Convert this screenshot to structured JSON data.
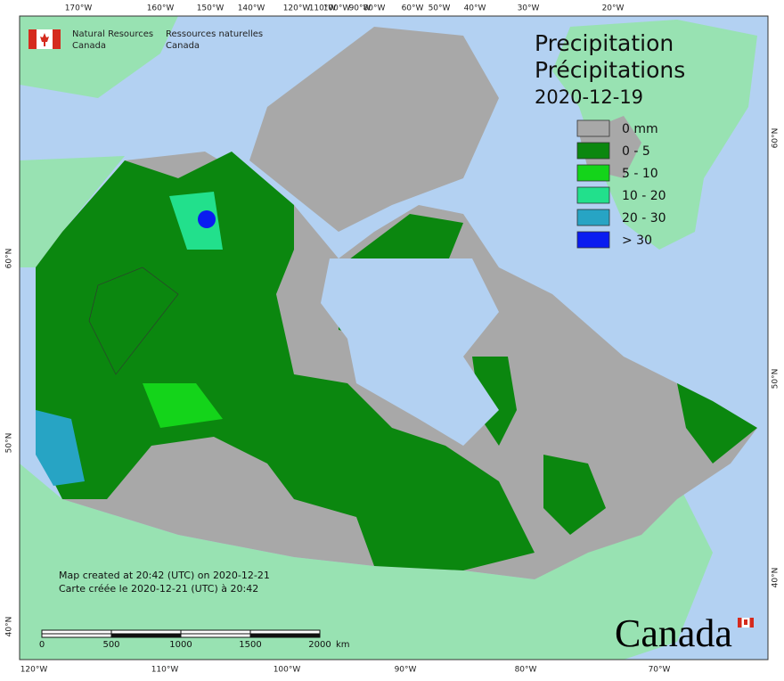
{
  "graticule": {
    "top": [
      "170°W",
      "160°W",
      "150°W",
      "140°W",
      "120°W",
      "110°W",
      "100°W",
      "90°W",
      "80°W",
      "60°W",
      "50°W",
      "40°W",
      "30°W",
      "20°W"
    ],
    "bottom": [
      "120°W",
      "110°W",
      "100°W",
      "90°W",
      "80°W",
      "70°W"
    ],
    "left": [
      "60°N",
      "50°N",
      "40°N"
    ],
    "right": [
      "60°N",
      "50°N",
      "40°N"
    ]
  },
  "agency": {
    "en": [
      "Natural Resources",
      "Canada"
    ],
    "fr": [
      "Ressources naturelles",
      "Canada"
    ]
  },
  "title": {
    "en": "Precipitation",
    "fr": "Précipitations",
    "date": "2020-12-19"
  },
  "legend": [
    {
      "label": "0 mm",
      "color": "#a8a8a8"
    },
    {
      "label": "0 - 5",
      "color": "#0b870f"
    },
    {
      "label": "5 - 10",
      "color": "#14d41a"
    },
    {
      "label": "10 - 20",
      "color": "#22e08c"
    },
    {
      "label": "20 - 30",
      "color": "#27a4c4"
    },
    {
      "label": "> 30",
      "color": "#0a1cf0"
    }
  ],
  "credits": [
    "Map created at 20:42 (UTC) on 2020-12-21",
    "Carte créée le 2020-12-21 (UTC) à 20:42"
  ],
  "scale_bar": {
    "ticks": [
      "0",
      "500",
      "1000",
      "1500",
      "2000"
    ],
    "unit": "km"
  },
  "wordmark": "Canada"
}
